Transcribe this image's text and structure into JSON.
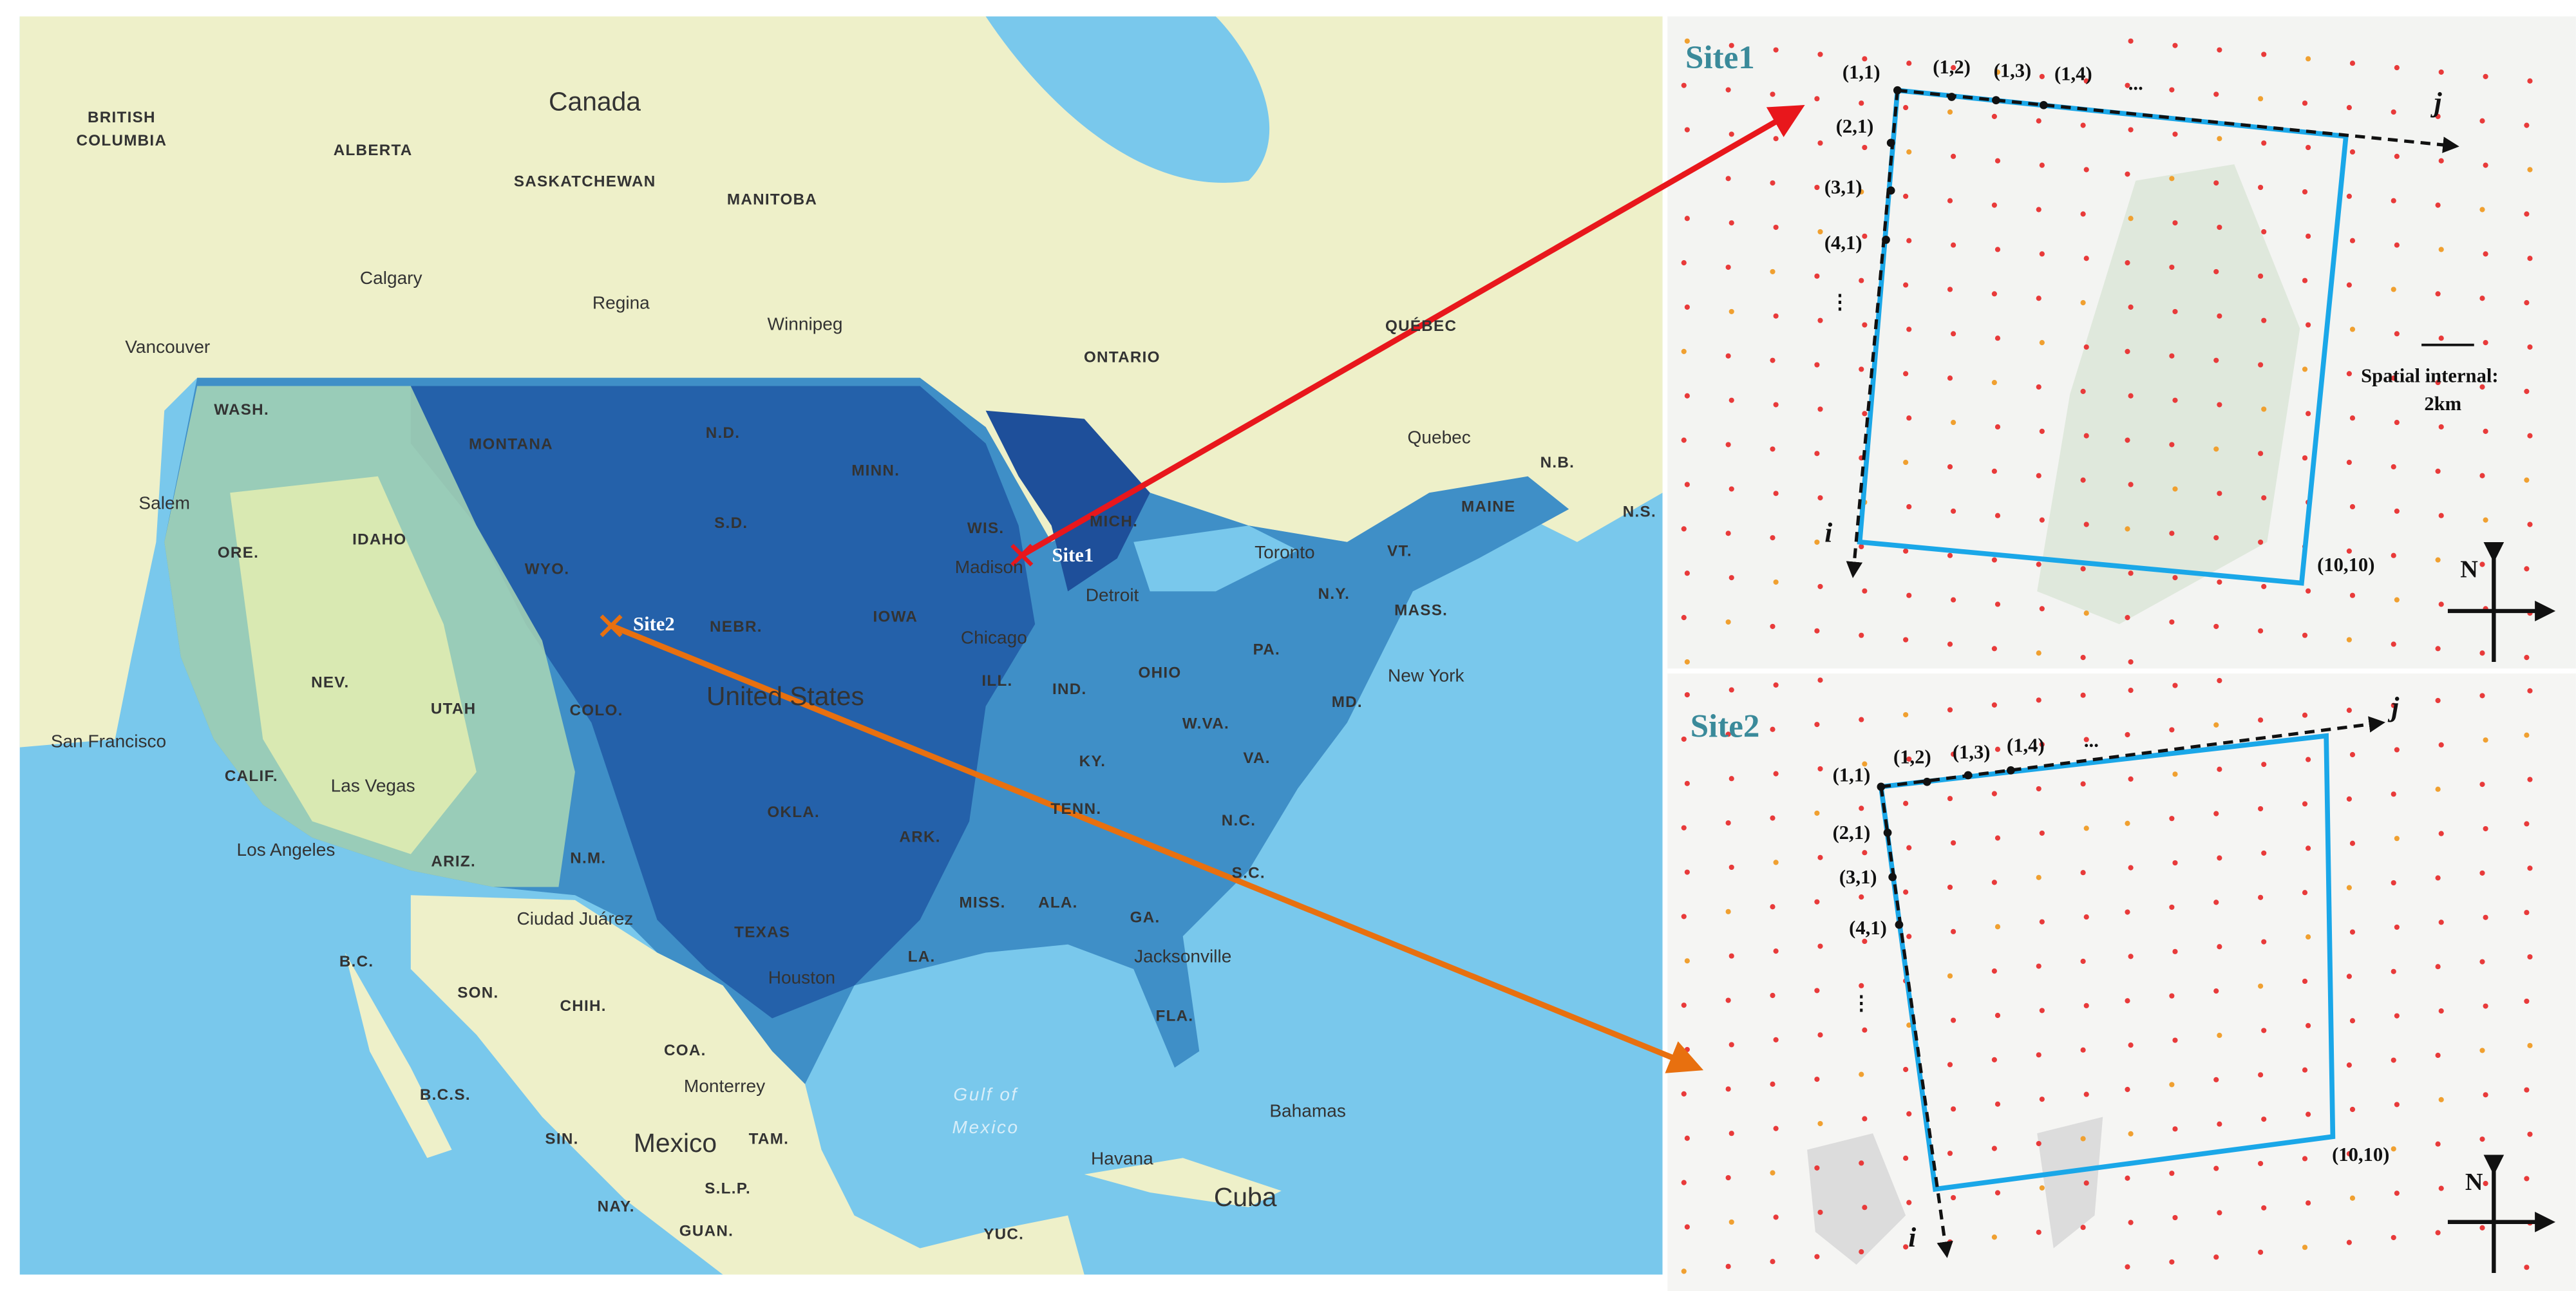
{
  "map": {
    "labels": [
      "Canada",
      "BRITISH",
      "COLUMBIA",
      "ALBERTA",
      "SASKATCHEWAN",
      "MANITOBA",
      "ONTARIO",
      "QUÉBEC",
      "Calgary",
      "Regina",
      "Winnipeg",
      "Vancouver",
      "WASH.",
      "MONTANA",
      "N.D.",
      "MINN.",
      "Quebec",
      "N.B.",
      "MAINE",
      "N.S.",
      "Salem",
      "ORE.",
      "IDAHO",
      "S.D.",
      "WIS.",
      "MICH.",
      "Toronto",
      "VT.",
      "WYO.",
      "Madison",
      "Detroit",
      "N.Y.",
      "MASS.",
      "NEBR.",
      "IOWA",
      "Chicago",
      "NEV.",
      "UTAH",
      "COLO.",
      "United States",
      "ILL.",
      "IND.",
      "OHIO",
      "PA.",
      "New York",
      "San Francisco",
      "MD.",
      "W.VA.",
      "VA.",
      "KY.",
      "CALIF.",
      "Las Vegas",
      "OKLA.",
      "TENN.",
      "ARK.",
      "N.C.",
      "Los Angeles",
      "ARIZ.",
      "N.M.",
      "S.C.",
      "MISS.",
      "ALA.",
      "GA.",
      "Ciudad Juárez",
      "TEXAS",
      "LA.",
      "Jacksonville",
      "B.C.",
      "Houston",
      "SON.",
      "CHIH.",
      "FLA.",
      "COA.",
      "Monterrey",
      "Gulf of",
      "Mexico",
      "B.C.S.",
      "Bahamas",
      "SIN.",
      "Mexico",
      "TAM.",
      "Havana",
      "S.L.P.",
      "Cuba",
      "NAY.",
      "GUAN.",
      "YUC."
    ]
  },
  "sites": [
    {
      "marker": "Site1",
      "panel": {
        "title": "Site1",
        "grid_labels": [
          "(1,1)",
          "(1,2)",
          "(1,3)",
          "(1,4)",
          "...",
          "(2,1)",
          "(3,1)",
          "(4,1)",
          "⋮",
          "(10,10)"
        ],
        "i_axis": "i",
        "j_axis": "j",
        "north": "N"
      }
    },
    {
      "marker": "Site2",
      "panel": {
        "title": "Site2",
        "grid_labels": [
          "(1,1)",
          "(1,2)",
          "(1,3)",
          "(1,4)",
          "...",
          "(2,1)",
          "(3,1)",
          "(4,1)",
          "⋮",
          "(10,10)"
        ],
        "i_axis": "i",
        "j_axis": "j",
        "north": "N"
      }
    }
  ],
  "scale_note": [
    "Spatial internal:",
    "2km"
  ]
}
